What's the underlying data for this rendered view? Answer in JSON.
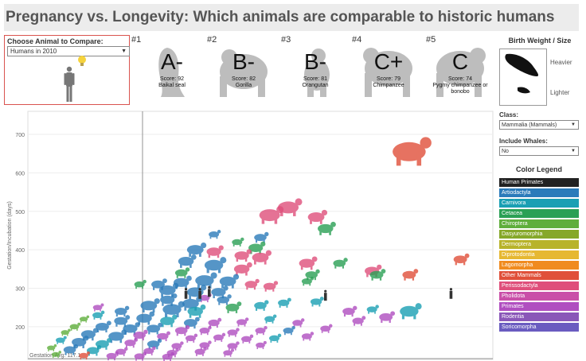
{
  "title": "Pregnancy vs. Longevity: Which animals are comparable to historic humans",
  "chooser": {
    "label": "Choose Animal to Compare:",
    "selected": "Humans in 2010"
  },
  "comparisons": [
    {
      "rank": "#1",
      "grade": "A-",
      "score": "Score: 92",
      "animal": "Baikal seal"
    },
    {
      "rank": "#2",
      "grade": "B-",
      "score": "Score: 82",
      "animal": "Gorilla"
    },
    {
      "rank": "#3",
      "grade": "B-",
      "score": "Score: 81",
      "animal": "Orangutan"
    },
    {
      "rank": "#4",
      "grade": "C+",
      "score": "Score: 79",
      "animal": "Chimpanzee"
    },
    {
      "rank": "#5",
      "grade": "C",
      "score": "Score: 74",
      "animal": "Pygmy chimpanzee or bonobo"
    }
  ],
  "birth_weight": {
    "title": "Birth Weight / Size",
    "heavier": "Heavier",
    "lighter": "Lighter"
  },
  "class_filter": {
    "label": "Class:",
    "selected": "Mammalia (Mammals)"
  },
  "whales_filter": {
    "label": "Include Whales:",
    "selected": "No"
  },
  "legend": {
    "title": "Color Legend",
    "items": [
      {
        "label": "Human Primates",
        "color": "#222222"
      },
      {
        "label": "Artiodactyla",
        "color": "#2b7bba"
      },
      {
        "label": "Carnivora",
        "color": "#1a9fb3"
      },
      {
        "label": "Cetacea",
        "color": "#2aa055"
      },
      {
        "label": "Chiroptera",
        "color": "#5fae3c"
      },
      {
        "label": "Dasyuromorphia",
        "color": "#86a82a"
      },
      {
        "label": "Dermoptera",
        "color": "#b8b32a"
      },
      {
        "label": "Diprotodontia",
        "color": "#e6b832"
      },
      {
        "label": "Lagomorpha",
        "color": "#f08b1f"
      },
      {
        "label": "Other Mammals",
        "color": "#e0503a"
      },
      {
        "label": "Perissodactyla",
        "color": "#df4f7b"
      },
      {
        "label": "Pholidota",
        "color": "#c94fa8"
      },
      {
        "label": "Primates",
        "color": "#b04ec0"
      },
      {
        "label": "Rodentia",
        "color": "#8a57b8"
      },
      {
        "label": "Soricomorpha",
        "color": "#6a5cc0"
      }
    ]
  },
  "chart_data": {
    "type": "scatter",
    "ylabel": "Gestation/Incubation (days)",
    "yticks": [
      200,
      300,
      400,
      500,
      600,
      700
    ],
    "ylim": [
      115,
      760
    ],
    "gestation_avg_label": "Gestation Avg: 117.1",
    "gestation_avg": 117.1,
    "points": [
      {
        "x": 0.82,
        "y": 655,
        "c": 9,
        "s": 3.2
      },
      {
        "x": 0.56,
        "y": 510,
        "c": 10,
        "s": 2.0
      },
      {
        "x": 0.52,
        "y": 490,
        "c": 10,
        "s": 2.0
      },
      {
        "x": 0.62,
        "y": 485,
        "c": 10,
        "s": 1.6
      },
      {
        "x": 0.64,
        "y": 455,
        "c": 3,
        "s": 1.5
      },
      {
        "x": 0.5,
        "y": 432,
        "c": 1,
        "s": 1.2
      },
      {
        "x": 0.4,
        "y": 440,
        "c": 1,
        "s": 1.0
      },
      {
        "x": 0.49,
        "y": 405,
        "c": 3,
        "s": 1.4
      },
      {
        "x": 0.36,
        "y": 400,
        "c": 1,
        "s": 1.6
      },
      {
        "x": 0.4,
        "y": 395,
        "c": 10,
        "s": 1.4
      },
      {
        "x": 0.46,
        "y": 385,
        "c": 10,
        "s": 1.4
      },
      {
        "x": 0.5,
        "y": 380,
        "c": 10,
        "s": 1.6
      },
      {
        "x": 0.34,
        "y": 370,
        "c": 1,
        "s": 1.5
      },
      {
        "x": 0.4,
        "y": 360,
        "c": 1,
        "s": 1.8
      },
      {
        "x": 0.46,
        "y": 350,
        "c": 10,
        "s": 1.5
      },
      {
        "x": 0.6,
        "y": 365,
        "c": 10,
        "s": 1.5
      },
      {
        "x": 0.67,
        "y": 365,
        "c": 3,
        "s": 1.2
      },
      {
        "x": 0.74,
        "y": 345,
        "c": 10,
        "s": 1.4
      },
      {
        "x": 0.75,
        "y": 335,
        "c": 3,
        "s": 1.3
      },
      {
        "x": 0.82,
        "y": 335,
        "c": 9,
        "s": 1.3
      },
      {
        "x": 0.93,
        "y": 375,
        "c": 9,
        "s": 1.3
      },
      {
        "x": 0.61,
        "y": 335,
        "c": 3,
        "s": 1.2
      },
      {
        "x": 0.6,
        "y": 318,
        "c": 3,
        "s": 1.0
      },
      {
        "x": 0.38,
        "y": 320,
        "c": 1,
        "s": 1.8
      },
      {
        "x": 0.43,
        "y": 318,
        "c": 1,
        "s": 1.6
      },
      {
        "x": 0.33,
        "y": 315,
        "c": 1,
        "s": 1.5
      },
      {
        "x": 0.28,
        "y": 310,
        "c": 1,
        "s": 1.3
      },
      {
        "x": 0.3,
        "y": 295,
        "c": 1,
        "s": 1.6
      },
      {
        "x": 0.36,
        "y": 290,
        "c": 1,
        "s": 1.6
      },
      {
        "x": 0.41,
        "y": 290,
        "c": 1,
        "s": 1.4
      },
      {
        "x": 0.48,
        "y": 310,
        "c": 10,
        "s": 1.2
      },
      {
        "x": 0.52,
        "y": 305,
        "c": 10,
        "s": 1.2
      },
      {
        "x": 0.38,
        "y": 275,
        "c": 12,
        "s": 1.0
      },
      {
        "x": 0.3,
        "y": 270,
        "c": 1,
        "s": 1.4
      },
      {
        "x": 0.35,
        "y": 260,
        "c": 1,
        "s": 1.6
      },
      {
        "x": 0.42,
        "y": 270,
        "c": 1,
        "s": 1.2
      },
      {
        "x": 0.26,
        "y": 255,
        "c": 1,
        "s": 1.6
      },
      {
        "x": 0.31,
        "y": 245,
        "c": 1,
        "s": 1.8
      },
      {
        "x": 0.36,
        "y": 240,
        "c": 2,
        "s": 1.5
      },
      {
        "x": 0.44,
        "y": 250,
        "c": 3,
        "s": 1.3
      },
      {
        "x": 0.5,
        "y": 255,
        "c": 2,
        "s": 1.2
      },
      {
        "x": 0.55,
        "y": 262,
        "c": 2,
        "s": 1.1
      },
      {
        "x": 0.62,
        "y": 265,
        "c": 2,
        "s": 1.1
      },
      {
        "x": 0.69,
        "y": 240,
        "c": 12,
        "s": 1.2
      },
      {
        "x": 0.74,
        "y": 245,
        "c": 2,
        "s": 1.0
      },
      {
        "x": 0.82,
        "y": 240,
        "c": 2,
        "s": 1.8
      },
      {
        "x": 0.77,
        "y": 225,
        "c": 12,
        "s": 1.3
      },
      {
        "x": 0.71,
        "y": 215,
        "c": 12,
        "s": 1.1
      },
      {
        "x": 0.2,
        "y": 240,
        "c": 1,
        "s": 1.2
      },
      {
        "x": 0.15,
        "y": 230,
        "c": 2,
        "s": 1.0
      },
      {
        "x": 0.12,
        "y": 220,
        "c": 4,
        "s": 0.8
      },
      {
        "x": 0.2,
        "y": 215,
        "c": 1,
        "s": 1.3
      },
      {
        "x": 0.25,
        "y": 222,
        "c": 1,
        "s": 1.5
      },
      {
        "x": 0.3,
        "y": 215,
        "c": 2,
        "s": 1.4
      },
      {
        "x": 0.35,
        "y": 210,
        "c": 1,
        "s": 1.3
      },
      {
        "x": 0.4,
        "y": 210,
        "c": 12,
        "s": 1.1
      },
      {
        "x": 0.46,
        "y": 212,
        "c": 12,
        "s": 1.0
      },
      {
        "x": 0.52,
        "y": 220,
        "c": 2,
        "s": 1.0
      },
      {
        "x": 0.58,
        "y": 210,
        "c": 12,
        "s": 1.0
      },
      {
        "x": 0.64,
        "y": 195,
        "c": 12,
        "s": 1.0
      },
      {
        "x": 0.16,
        "y": 200,
        "c": 1,
        "s": 1.3
      },
      {
        "x": 0.22,
        "y": 195,
        "c": 1,
        "s": 1.4
      },
      {
        "x": 0.27,
        "y": 195,
        "c": 1,
        "s": 1.3
      },
      {
        "x": 0.33,
        "y": 190,
        "c": 12,
        "s": 1.2
      },
      {
        "x": 0.38,
        "y": 190,
        "c": 12,
        "s": 1.0
      },
      {
        "x": 0.44,
        "y": 185,
        "c": 12,
        "s": 1.0
      },
      {
        "x": 0.5,
        "y": 190,
        "c": 12,
        "s": 1.0
      },
      {
        "x": 0.56,
        "y": 190,
        "c": 1,
        "s": 1.0
      },
      {
        "x": 0.1,
        "y": 200,
        "c": 4,
        "s": 0.9
      },
      {
        "x": 0.08,
        "y": 185,
        "c": 4,
        "s": 0.8
      },
      {
        "x": 0.13,
        "y": 180,
        "c": 1,
        "s": 1.4
      },
      {
        "x": 0.19,
        "y": 175,
        "c": 1,
        "s": 1.5
      },
      {
        "x": 0.24,
        "y": 178,
        "c": 12,
        "s": 1.2
      },
      {
        "x": 0.29,
        "y": 175,
        "c": 12,
        "s": 1.1
      },
      {
        "x": 0.35,
        "y": 170,
        "c": 12,
        "s": 1.0
      },
      {
        "x": 0.41,
        "y": 172,
        "c": 12,
        "s": 1.0
      },
      {
        "x": 0.47,
        "y": 168,
        "c": 12,
        "s": 1.0
      },
      {
        "x": 0.53,
        "y": 170,
        "c": 2,
        "s": 1.0
      },
      {
        "x": 0.6,
        "y": 175,
        "c": 12,
        "s": 1.0
      },
      {
        "x": 0.07,
        "y": 165,
        "c": 2,
        "s": 0.9
      },
      {
        "x": 0.11,
        "y": 160,
        "c": 1,
        "s": 1.4
      },
      {
        "x": 0.16,
        "y": 155,
        "c": 2,
        "s": 1.3
      },
      {
        "x": 0.22,
        "y": 158,
        "c": 12,
        "s": 1.1
      },
      {
        "x": 0.27,
        "y": 155,
        "c": 1,
        "s": 1.2
      },
      {
        "x": 0.32,
        "y": 150,
        "c": 12,
        "s": 1.0
      },
      {
        "x": 0.38,
        "y": 152,
        "c": 12,
        "s": 1.0
      },
      {
        "x": 0.44,
        "y": 150,
        "c": 12,
        "s": 1.0
      },
      {
        "x": 0.5,
        "y": 152,
        "c": 12,
        "s": 0.9
      },
      {
        "x": 0.05,
        "y": 145,
        "c": 4,
        "s": 0.8
      },
      {
        "x": 0.09,
        "y": 140,
        "c": 1,
        "s": 1.2
      },
      {
        "x": 0.14,
        "y": 138,
        "c": 2,
        "s": 1.2
      },
      {
        "x": 0.2,
        "y": 135,
        "c": 12,
        "s": 1.0
      },
      {
        "x": 0.26,
        "y": 137,
        "c": 12,
        "s": 1.0
      },
      {
        "x": 0.31,
        "y": 132,
        "c": 12,
        "s": 1.0
      },
      {
        "x": 0.37,
        "y": 135,
        "c": 12,
        "s": 1.0
      },
      {
        "x": 0.43,
        "y": 132,
        "c": 12,
        "s": 0.9
      },
      {
        "x": 0.06,
        "y": 128,
        "c": 4,
        "s": 0.8
      },
      {
        "x": 0.12,
        "y": 125,
        "c": 9,
        "s": 0.9
      },
      {
        "x": 0.18,
        "y": 124,
        "c": 12,
        "s": 1.0
      },
      {
        "x": 0.24,
        "y": 123,
        "c": 12,
        "s": 1.0
      },
      {
        "x": 0.3,
        "y": 122,
        "c": 12,
        "s": 1.0
      },
      {
        "x": 0.15,
        "y": 250,
        "c": 12,
        "s": 0.9
      },
      {
        "x": 0.24,
        "y": 310,
        "c": 3,
        "s": 1.0
      },
      {
        "x": 0.33,
        "y": 340,
        "c": 3,
        "s": 1.2
      },
      {
        "x": 0.45,
        "y": 420,
        "c": 3,
        "s": 1.0
      },
      {
        "x": 0.64,
        "y": 450,
        "c": 0,
        "s": 0.0
      }
    ],
    "humans": [
      {
        "x": 0.34,
        "y": 285
      },
      {
        "x": 0.37,
        "y": 285
      },
      {
        "x": 0.39,
        "y": 290
      },
      {
        "x": 0.64,
        "y": 280
      },
      {
        "x": 0.91,
        "y": 285
      }
    ]
  }
}
